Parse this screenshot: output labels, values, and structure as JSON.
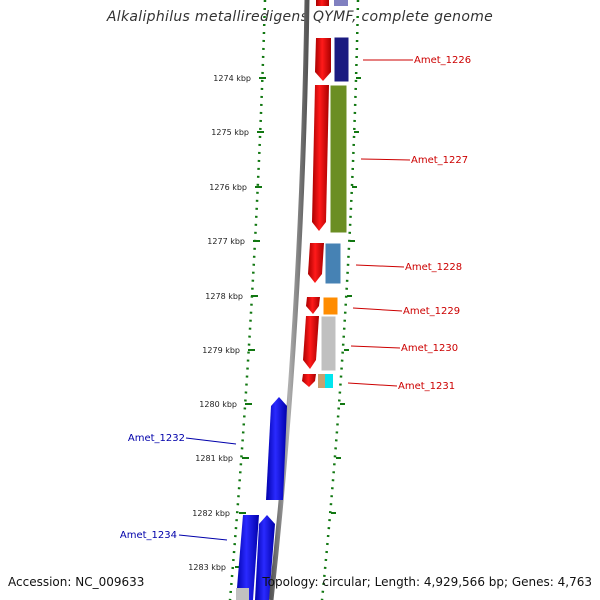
{
  "title": "Alkaliphilus metalliredigens QYMF, complete genome",
  "footer": {
    "accession": "Accession: NC_009633",
    "summary": "Topology: circular; Length: 4,929,566 bp; Genes: 4,763"
  },
  "ticks": [
    "1274 kbp",
    "1275 kbp",
    "1276 kbp",
    "1277 kbp",
    "1278 kbp",
    "1279 kbp",
    "1280 kbp",
    "1281 kbp",
    "1282 kbp",
    "1283 kbp"
  ],
  "genes_forward": [
    {
      "label": "Amet_1226",
      "color": "#cc0000"
    },
    {
      "label": "Amet_1227",
      "color": "#cc0000"
    },
    {
      "label": "Amet_1228",
      "color": "#cc0000"
    },
    {
      "label": "Amet_1229",
      "color": "#cc0000"
    },
    {
      "label": "Amet_1230",
      "color": "#cc0000"
    },
    {
      "label": "Amet_1231",
      "color": "#cc0000"
    }
  ],
  "genes_reverse": [
    {
      "label": "Amet_1232",
      "color": "#0000aa"
    },
    {
      "label": "Amet_1234",
      "color": "#0000aa"
    }
  ],
  "colors": {
    "forward_gene": "#ee0000",
    "reverse_gene": "#0000ee",
    "dotted_track": "#117711",
    "backbone": "#888888",
    "cog_navy": "#1a1a80",
    "cog_olive": "#6b8e23",
    "cog_steel": "#4682b4",
    "cog_orange": "#ff8c00",
    "cog_gray": "#c0c0c0",
    "cog_tan": "#c8a070",
    "cog_cyan": "#00e5ee",
    "cog_lavender": "#8080c0"
  }
}
